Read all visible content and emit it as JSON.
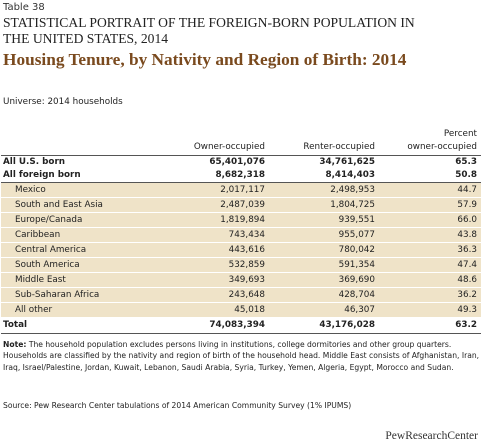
{
  "table_label": "Table 38",
  "super_title_line1": "STATISTICAL PORTRAIT OF THE FOREIGN-BORN POPULATION IN",
  "super_title_line2": "THE UNITED STATES, 2014",
  "title": "Housing Tenure, by Nativity and Region of Birth: 2014",
  "universe": "Universe: 2014 households",
  "columns": {
    "owner": "Owner-occupied",
    "renter": "Renter-occupied",
    "pct_line1": "Percent",
    "pct_line2": "owner-occupied"
  },
  "rows": [
    {
      "label": "All U.S. born",
      "owner": "65,401,076",
      "renter": "34,761,625",
      "pct": "65.3"
    },
    {
      "label": "All foreign born",
      "owner": "8,682,318",
      "renter": "8,414,403",
      "pct": "50.8"
    },
    {
      "label": "Mexico",
      "owner": "2,017,117",
      "renter": "2,498,953",
      "pct": "44.7"
    },
    {
      "label": "South and East Asia",
      "owner": "2,487,039",
      "renter": "1,804,725",
      "pct": "57.9"
    },
    {
      "label": "Europe/Canada",
      "owner": "1,819,894",
      "renter": "939,551",
      "pct": "66.0"
    },
    {
      "label": "Caribbean",
      "owner": "743,434",
      "renter": "955,077",
      "pct": "43.8"
    },
    {
      "label": "Central America",
      "owner": "443,616",
      "renter": "780,042",
      "pct": "36.3"
    },
    {
      "label": "South America",
      "owner": "532,859",
      "renter": "591,354",
      "pct": "47.4"
    },
    {
      "label": "Middle East",
      "owner": "349,693",
      "renter": "369,690",
      "pct": "48.6"
    },
    {
      "label": "Sub-Saharan Africa",
      "owner": "243,648",
      "renter": "428,704",
      "pct": "36.2"
    },
    {
      "label": "All other",
      "owner": "45,018",
      "renter": "46,307",
      "pct": "49.3"
    },
    {
      "label": "Total",
      "owner": "74,083,394",
      "renter": "43,176,028",
      "pct": "63.2"
    }
  ],
  "note_label": "Note:",
  "note_text": "The household population excludes persons living in institutions, college dormitories and other group quarters. Households are classified by the nativity and region of birth of the household head. Middle East consists of Afghanistan, Iran, Iraq, Israel/Palestine, Jordan, Kuwait, Lebanon, Saudi Arabia, Syria, Turkey, Yemen, Algeria, Egypt, Morocco and Sudan.",
  "source": "Source: Pew Research Center tabulations of 2014 American Community Survey (1% IPUMS)",
  "brand": "PewResearchCenter"
}
